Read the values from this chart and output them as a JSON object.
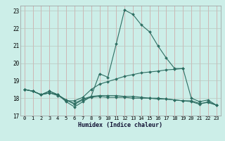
{
  "xlabel": "Humidex (Indice chaleur)",
  "bg_color": "#cceee8",
  "grid_color_v": "#d0a0a0",
  "grid_color_h": "#b8c8c0",
  "line_color": "#2e6e62",
  "xlim": [
    -0.5,
    23.5
  ],
  "ylim": [
    17.0,
    23.3
  ],
  "yticks": [
    17,
    18,
    19,
    20,
    21,
    22,
    23
  ],
  "xticks": [
    0,
    1,
    2,
    3,
    4,
    5,
    6,
    7,
    8,
    9,
    10,
    11,
    12,
    13,
    14,
    15,
    16,
    17,
    18,
    19,
    20,
    21,
    22,
    23
  ],
  "series": [
    {
      "x": [
        0,
        1,
        2,
        3,
        4,
        5,
        6,
        7,
        8,
        9,
        10,
        11,
        12,
        13,
        14,
        15,
        16,
        17,
        18,
        19,
        20,
        21,
        22,
        23
      ],
      "y": [
        18.5,
        18.4,
        18.2,
        18.4,
        18.2,
        17.8,
        17.5,
        17.8,
        18.1,
        19.4,
        19.2,
        21.1,
        23.05,
        22.8,
        22.2,
        21.8,
        21.0,
        20.3,
        19.7,
        19.7,
        18.0,
        17.8,
        17.9,
        17.6
      ]
    },
    {
      "x": [
        0,
        1,
        2,
        3,
        4,
        5,
        6,
        7,
        8,
        9,
        10,
        11,
        12,
        13,
        14,
        15,
        16,
        17,
        18,
        19
      ],
      "y": [
        18.5,
        18.4,
        18.2,
        18.4,
        18.2,
        17.85,
        17.85,
        18.05,
        18.5,
        18.8,
        18.95,
        19.1,
        19.25,
        19.35,
        19.45,
        19.5,
        19.55,
        19.62,
        19.65,
        19.7
      ]
    },
    {
      "x": [
        0,
        1,
        2,
        3,
        4,
        5,
        6,
        7,
        8,
        9,
        10,
        11,
        12,
        13,
        14,
        15,
        16,
        17,
        18,
        19,
        20,
        21,
        22,
        23
      ],
      "y": [
        18.5,
        18.4,
        18.2,
        18.3,
        18.2,
        17.9,
        17.7,
        17.95,
        18.1,
        18.15,
        18.15,
        18.15,
        18.1,
        18.1,
        18.05,
        18.0,
        18.0,
        17.95,
        17.9,
        17.85,
        17.85,
        17.7,
        17.75,
        17.6
      ]
    },
    {
      "x": [
        0,
        1,
        2,
        3,
        4,
        5,
        6,
        7,
        8,
        9,
        10,
        11,
        12,
        13,
        14,
        15,
        16,
        17,
        18,
        19,
        20,
        21,
        22,
        23
      ],
      "y": [
        18.5,
        18.4,
        18.2,
        18.3,
        18.15,
        17.9,
        17.65,
        17.9,
        18.05,
        18.1,
        18.05,
        18.05,
        18.05,
        18.0,
        18.0,
        18.0,
        17.95,
        17.95,
        17.9,
        17.85,
        17.8,
        17.65,
        17.8,
        17.6
      ]
    }
  ]
}
